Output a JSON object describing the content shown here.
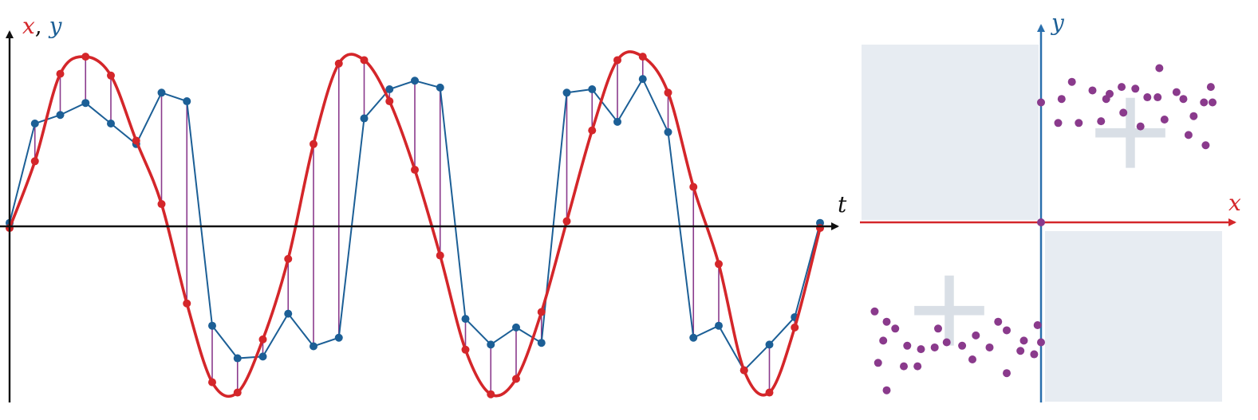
{
  "labels": {
    "time_axis_x": "x",
    "time_axis_sep": ", ",
    "time_axis_y": "y",
    "time_axis_t": "t",
    "scatter_x": "x",
    "scatter_y": "y"
  },
  "colors": {
    "x_series": "#d4262a",
    "y_series": "#1c5f96",
    "stems": "#8a3a8c",
    "scatter_points": "#8a3a8c",
    "axes": "#111111",
    "scatter_x_axis": "#d4262a",
    "scatter_y_axis": "#2a6fad",
    "quadrant_fill": "#dfe6ee"
  },
  "chart_data": [
    {
      "type": "line",
      "xlabel": "t",
      "ylabel": "x, y",
      "xlim": [
        0,
        1
      ],
      "ylim": [
        -1,
        1
      ],
      "grid": false,
      "x_signal": {
        "name": "x",
        "description_of_shape": "three-period square-ish wave",
        "values": [
          -0.01,
          0.38,
          0.89,
          0.99,
          0.88,
          0.5,
          0.13,
          -0.45,
          -0.91,
          -0.97,
          -0.66,
          -0.19,
          0.48,
          0.95,
          0.97,
          0.73,
          0.33,
          -0.17,
          -0.72,
          -0.98,
          -0.89,
          -0.5,
          0.03,
          0.56,
          0.97,
          0.99,
          0.78,
          0.23,
          -0.22,
          -0.84,
          -0.97,
          -0.59,
          -0.01
        ]
      },
      "y_signal": {
        "name": "y",
        "values": [
          0.02,
          0.6,
          0.65,
          0.72,
          0.6,
          0.48,
          0.78,
          0.73,
          -0.58,
          -0.77,
          -0.76,
          -0.51,
          -0.7,
          -0.65,
          0.63,
          0.8,
          0.85,
          0.81,
          -0.54,
          -0.69,
          -0.59,
          -0.68,
          0.78,
          0.8,
          0.61,
          0.86,
          0.55,
          -0.65,
          -0.58,
          -0.84,
          -0.69,
          -0.53,
          0.02
        ]
      }
    },
    {
      "type": "scatter",
      "xlabel": "x",
      "ylabel": "y",
      "xlim": [
        -1,
        1
      ],
      "ylim": [
        -1,
        1
      ],
      "grid": false,
      "quadrant_signs": [
        "+",
        "+"
      ],
      "y_axis_markers": [
        0.7,
        0.0,
        -0.7
      ],
      "points": [
        [
          0.12,
          0.72
        ],
        [
          0.18,
          0.82
        ],
        [
          0.3,
          0.77
        ],
        [
          0.4,
          0.75
        ],
        [
          0.47,
          0.79
        ],
        [
          0.55,
          0.78
        ],
        [
          0.62,
          0.73
        ],
        [
          0.69,
          0.9
        ],
        [
          0.79,
          0.76
        ],
        [
          0.83,
          0.72
        ],
        [
          0.89,
          0.62
        ],
        [
          0.95,
          0.7
        ],
        [
          0.99,
          0.79
        ],
        [
          1.0,
          0.7
        ],
        [
          0.1,
          0.58
        ],
        [
          0.22,
          0.58
        ],
        [
          0.35,
          0.59
        ],
        [
          0.48,
          0.64
        ],
        [
          0.58,
          0.56
        ],
        [
          0.72,
          0.6
        ],
        [
          0.86,
          0.51
        ],
        [
          0.96,
          0.45
        ],
        [
          0.38,
          0.72
        ],
        [
          0.68,
          0.73
        ],
        [
          -0.97,
          -0.52
        ],
        [
          -0.9,
          -0.58
        ],
        [
          -0.85,
          -0.62
        ],
        [
          -0.92,
          -0.69
        ],
        [
          -0.78,
          -0.72
        ],
        [
          -0.7,
          -0.74
        ],
        [
          -0.62,
          -0.73
        ],
        [
          -0.55,
          -0.7
        ],
        [
          -0.46,
          -0.72
        ],
        [
          -0.38,
          -0.66
        ],
        [
          -0.3,
          -0.73
        ],
        [
          -0.2,
          -0.63
        ],
        [
          -0.12,
          -0.75
        ],
        [
          -0.02,
          -0.6
        ],
        [
          -0.95,
          -0.82
        ],
        [
          -0.8,
          -0.84
        ],
        [
          -0.72,
          -0.84
        ],
        [
          -0.4,
          -0.8
        ],
        [
          -0.2,
          -0.88
        ],
        [
          -0.9,
          -0.98
        ],
        [
          -0.04,
          -0.77
        ],
        [
          -0.25,
          -0.58
        ],
        [
          -0.6,
          -0.62
        ],
        [
          -0.1,
          -0.69
        ]
      ]
    }
  ]
}
